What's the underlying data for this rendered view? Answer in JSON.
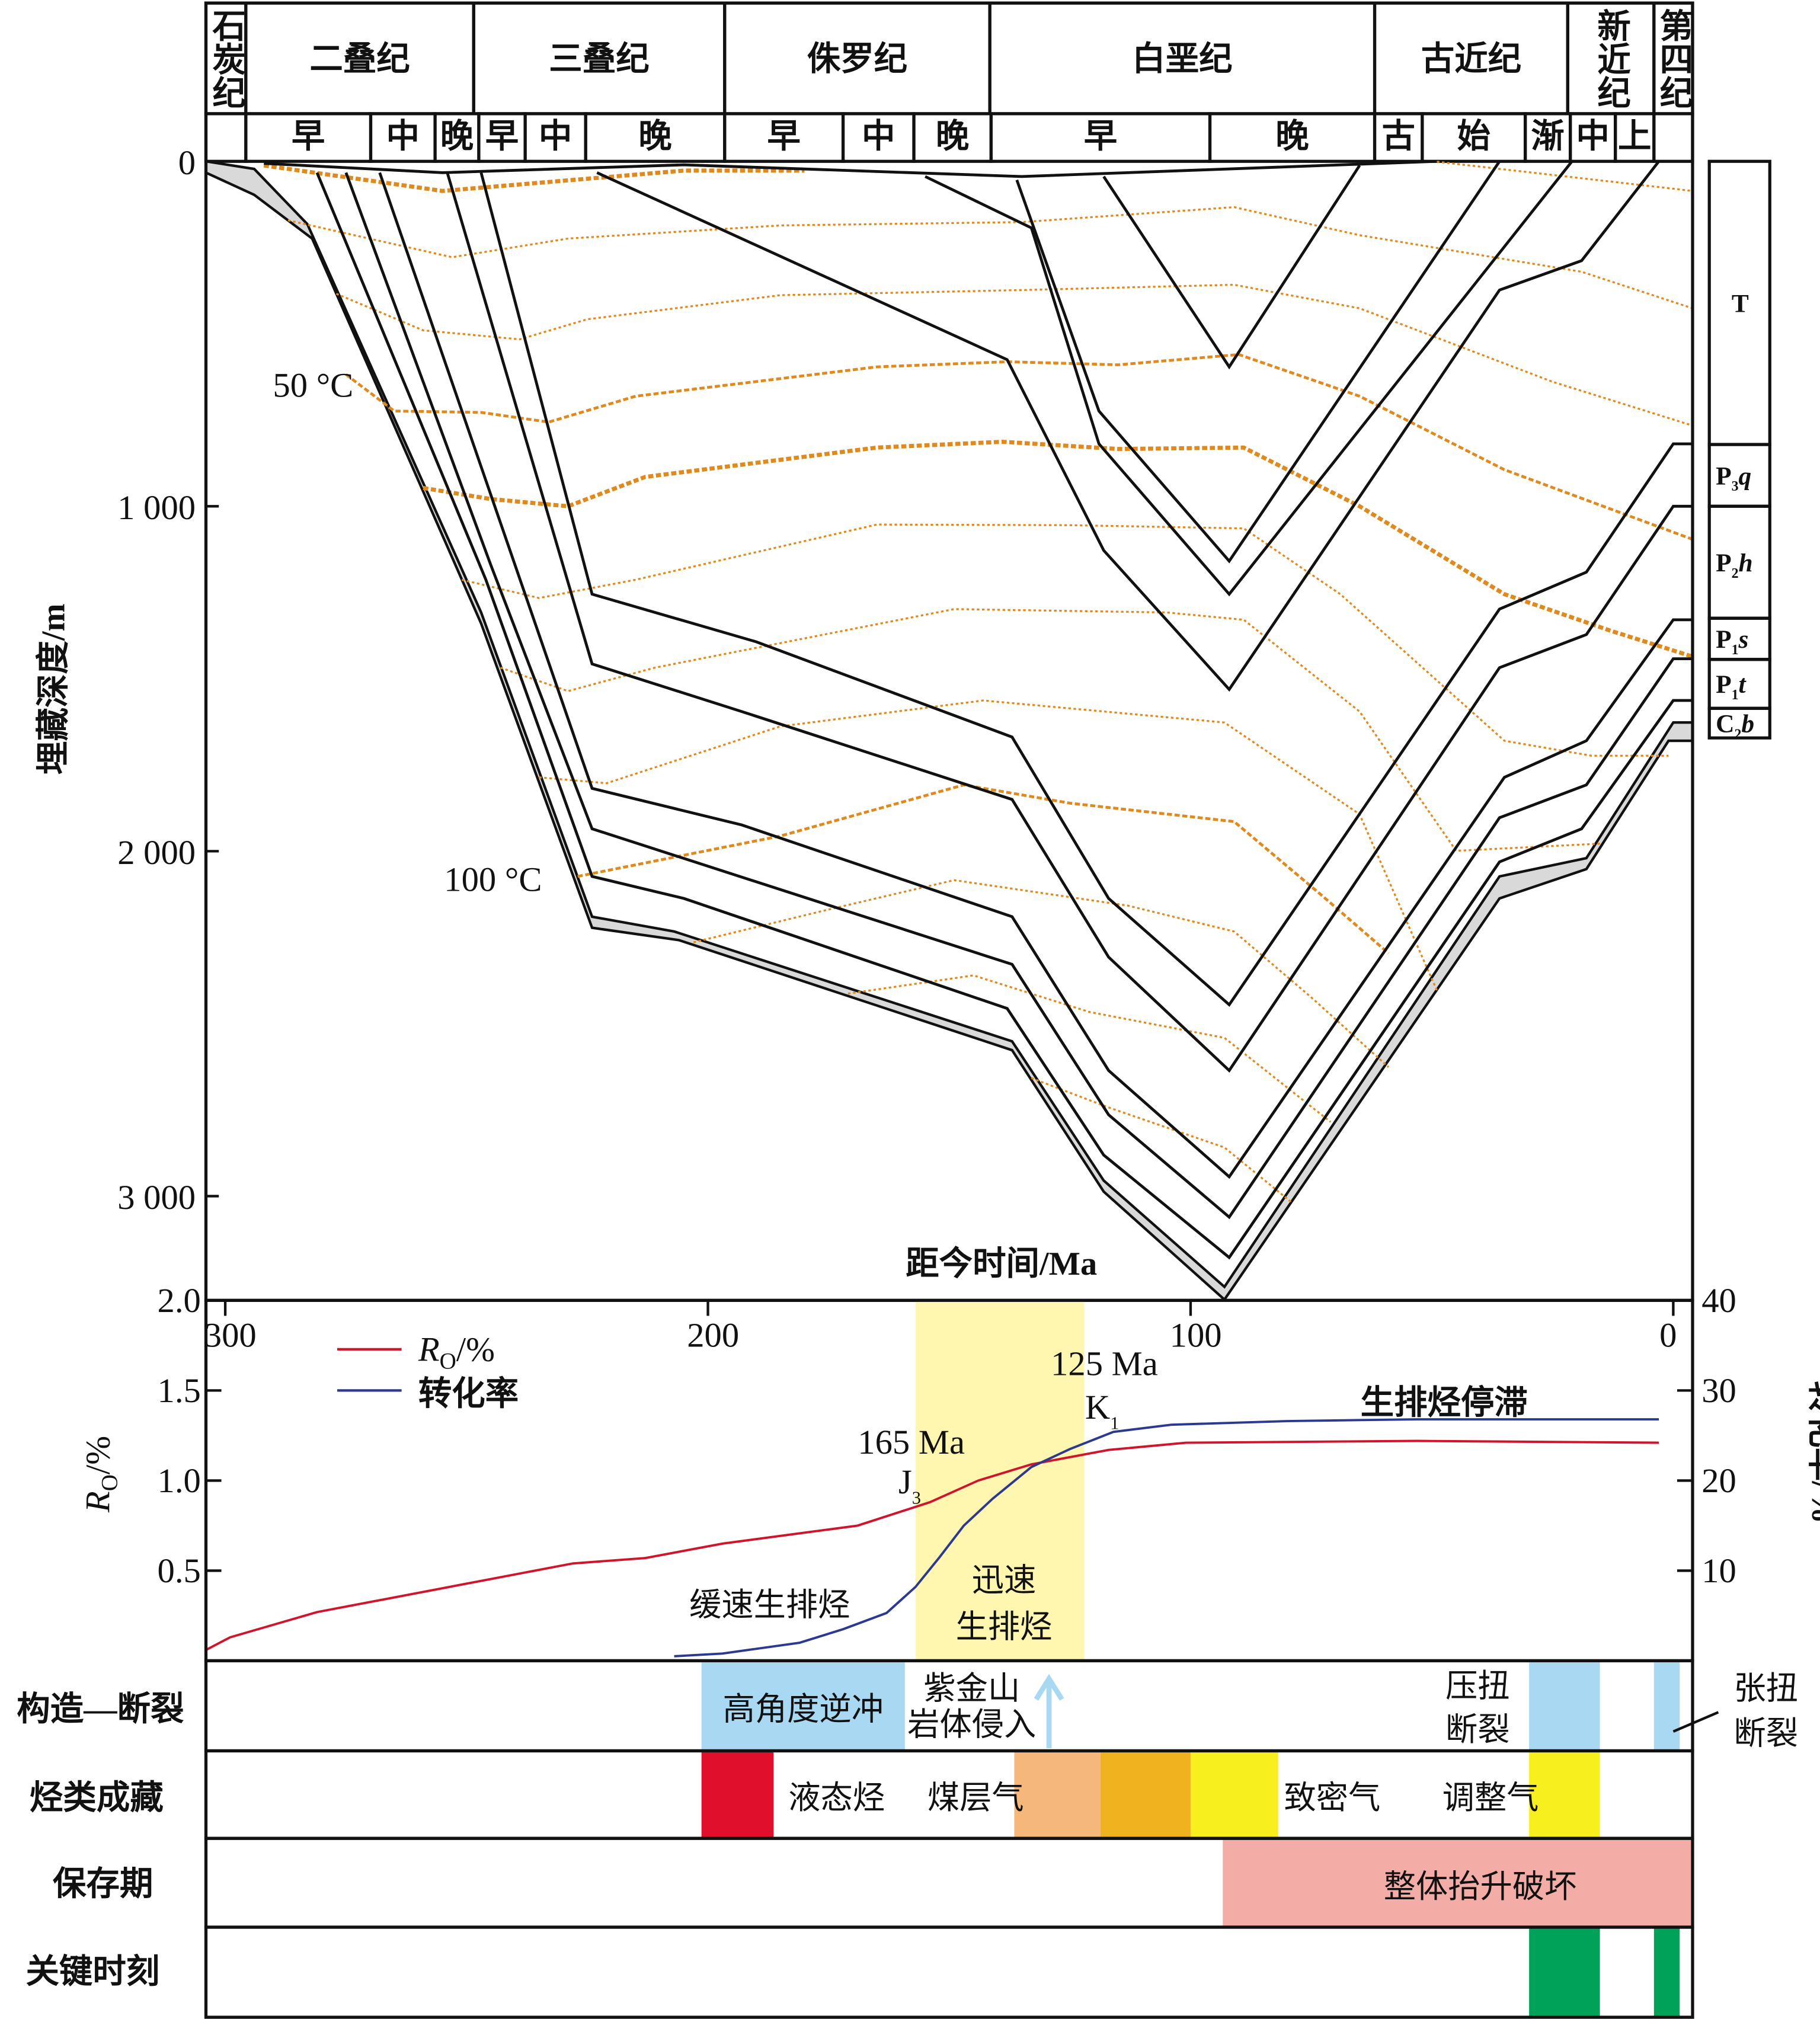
{
  "header": {
    "periods": [
      "石炭纪",
      "二叠纪",
      "三叠纪",
      "侏罗纪",
      "白垩纪",
      "古近纪",
      "新近纪",
      "第四纪"
    ],
    "epochs": [
      "早",
      "中",
      "晚",
      "早",
      "中",
      "晚",
      "早",
      "中",
      "晚",
      "早",
      "晚",
      "古",
      "始",
      "渐",
      "中",
      "上"
    ]
  },
  "burial": {
    "y_axis_title": "埋藏深度/m",
    "y_ticks": [
      {
        "value": 0,
        "label": "0"
      },
      {
        "value": 1000,
        "label": "1 000"
      },
      {
        "value": 2000,
        "label": "2 000"
      },
      {
        "value": 3000,
        "label": "3 000"
      }
    ],
    "x_axis_title": "距今时间/Ma",
    "x_range_ma": [
      304,
      -4
    ],
    "depth_range_m": [
      0,
      3300
    ],
    "isotherm_labels": [
      "50 °C",
      "100 °C"
    ],
    "surface_line": [
      [
        292,
        6
      ],
      [
        255,
        33
      ],
      [
        205,
        10
      ],
      [
        135,
        44
      ],
      [
        49,
        0
      ]
    ],
    "surfaces": [
      {
        "points": [
          [
            118,
            44
          ],
          [
            92,
            596
          ],
          [
            65,
            12
          ]
        ]
      },
      {
        "points": [
          [
            136,
            54
          ],
          [
            119,
            724
          ],
          [
            92,
            1159
          ],
          [
            36,
            0
          ]
        ]
      },
      {
        "points": [
          [
            155,
            44
          ],
          [
            133,
            193
          ],
          [
            119,
            819
          ],
          [
            92,
            1255
          ],
          [
            21,
            0
          ]
        ]
      },
      {
        "points": [
          [
            223,
            33
          ],
          [
            138,
            575
          ],
          [
            118,
            1128
          ],
          [
            92,
            1531
          ],
          [
            36,
            373
          ],
          [
            19,
            288
          ],
          [
            3,
            0
          ]
        ]
      },
      {
        "points": [
          [
            247,
            33
          ],
          [
            224,
            1255
          ],
          [
            190,
            1393
          ],
          [
            137,
            1669
          ],
          [
            117,
            2137
          ],
          [
            92,
            2445
          ],
          [
            36,
            1298
          ],
          [
            18,
            1191
          ],
          [
            0,
            819
          ],
          [
            -4,
            819
          ]
        ]
      },
      {
        "points": [
          [
            254,
            33
          ],
          [
            224,
            1457
          ],
          [
            193,
            1595
          ],
          [
            137,
            1850
          ],
          [
            117,
            2307
          ],
          [
            92,
            2636
          ],
          [
            36,
            1468
          ],
          [
            18,
            1372
          ],
          [
            0,
            1000
          ],
          [
            -4,
            1000
          ]
        ]
      },
      {
        "points": [
          [
            268,
            33
          ],
          [
            224,
            1818
          ],
          [
            193,
            1924
          ],
          [
            137,
            2190
          ],
          [
            117,
            2636
          ],
          [
            92,
            2944
          ],
          [
            35,
            1786
          ],
          [
            18,
            1680
          ],
          [
            0,
            1329
          ],
          [
            -4,
            1329
          ]
        ]
      },
      {
        "points": [
          [
            275,
            33
          ],
          [
            245,
            1170
          ],
          [
            224,
            1935
          ],
          [
            137,
            2328
          ],
          [
            117,
            2764
          ],
          [
            92,
            3061
          ],
          [
            36,
            1903
          ],
          [
            18,
            1808
          ],
          [
            0,
            1442
          ],
          [
            -4,
            1442
          ]
        ]
      },
      {
        "points": [
          [
            281,
            33
          ],
          [
            246,
            1213
          ],
          [
            224,
            2073
          ],
          [
            205,
            2137
          ],
          [
            138,
            2456
          ],
          [
            118,
            2881
          ],
          [
            92,
            3178
          ],
          [
            36,
            2031
          ],
          [
            19,
            1935
          ],
          [
            0,
            1563
          ],
          [
            -4,
            1563
          ]
        ]
      }
    ],
    "gray_band": {
      "top": [
        [
          304,
          0
        ],
        [
          294,
          22
        ],
        [
          283,
          182
        ],
        [
          247,
          1308
        ],
        [
          224,
          2190
        ],
        [
          207,
          2233
        ],
        [
          137,
          2551
        ],
        [
          118,
          2955
        ],
        [
          93,
          3263
        ],
        [
          36,
          2073
        ],
        [
          18,
          2020
        ],
        [
          0,
          1627
        ],
        [
          -4,
          1627
        ]
      ],
      "bottom": [
        [
          304,
          33
        ],
        [
          294,
          97
        ],
        [
          282,
          224
        ],
        [
          247,
          1340
        ],
        [
          224,
          2222
        ],
        [
          206,
          2258
        ],
        [
          137,
          2577
        ],
        [
          118,
          2987
        ],
        [
          93,
          3300
        ],
        [
          36,
          2137
        ],
        [
          18,
          2052
        ],
        [
          1,
          1680
        ],
        [
          -4,
          1680
        ]
      ],
      "color": "#d9d9d9"
    },
    "isotherm_color": "#e08a1e",
    "isotherms": [
      {
        "weight": "thick",
        "points": [
          [
            292,
            12
          ],
          [
            255,
            86
          ],
          [
            205,
            27
          ],
          [
            180,
            27
          ]
        ]
      },
      {
        "weight": "thin",
        "points": [
          [
            49,
            1
          ],
          [
            -4,
            86
          ]
        ]
      },
      {
        "weight": "thin",
        "points": [
          [
            287,
            171
          ],
          [
            253,
            278
          ],
          [
            229,
            224
          ],
          [
            185,
            186
          ],
          [
            135,
            176
          ],
          [
            91,
            133
          ],
          [
            65,
            214
          ],
          [
            19,
            320
          ],
          [
            -4,
            426
          ]
        ]
      },
      {
        "weight": "thin",
        "points": [
          [
            277,
            384
          ],
          [
            259,
            490
          ],
          [
            239,
            516
          ],
          [
            225,
            458
          ],
          [
            185,
            388
          ],
          [
            135,
            373
          ],
          [
            91,
            358
          ],
          [
            65,
            426
          ],
          [
            25,
            639
          ],
          [
            -4,
            766
          ]
        ]
      },
      {
        "weight": "mid",
        "points": [
          [
            275,
            618
          ],
          [
            265,
            724
          ],
          [
            247,
            728
          ],
          [
            233,
            756
          ],
          [
            215,
            681
          ],
          [
            165,
            596
          ],
          [
            138,
            581
          ],
          [
            115,
            590
          ],
          [
            90,
            560
          ],
          [
            65,
            681
          ],
          [
            35,
            894
          ],
          [
            -4,
            1096
          ]
        ]
      },
      {
        "weight": "thick",
        "points": [
          [
            259,
            947
          ],
          [
            245,
            979
          ],
          [
            229,
            1000
          ],
          [
            213,
            915
          ],
          [
            165,
            830
          ],
          [
            139,
            813
          ],
          [
            115,
            834
          ],
          [
            89,
            830
          ],
          [
            65,
            1000
          ],
          [
            35,
            1255
          ],
          [
            13,
            1361
          ],
          [
            -4,
            1436
          ]
        ]
      },
      {
        "weight": "thin",
        "points": [
          [
            251,
            1213
          ],
          [
            235,
            1266
          ],
          [
            215,
            1213
          ],
          [
            165,
            1053
          ],
          [
            125,
            1055
          ],
          [
            89,
            1064
          ],
          [
            69,
            1255
          ],
          [
            35,
            1680
          ],
          [
            17,
            1723
          ],
          [
            1,
            1723
          ]
        ]
      },
      {
        "weight": "thin",
        "points": [
          [
            243,
            1468
          ],
          [
            229,
            1536
          ],
          [
            211,
            1468
          ],
          [
            149,
            1298
          ],
          [
            105,
            1308
          ],
          [
            89,
            1329
          ],
          [
            65,
            1595
          ],
          [
            45,
            1999
          ],
          [
            15,
            1978
          ]
        ]
      },
      {
        "weight": "thin",
        "points": [
          [
            235,
            1786
          ],
          [
            221,
            1803
          ],
          [
            185,
            1638
          ],
          [
            143,
            1563
          ],
          [
            93,
            1627
          ],
          [
            65,
            1893
          ],
          [
            49,
            2403
          ]
        ]
      },
      {
        "weight": "mid",
        "points": [
          [
            227,
            2073
          ],
          [
            185,
            1956
          ],
          [
            147,
            1808
          ],
          [
            125,
            1861
          ],
          [
            91,
            1914
          ],
          [
            73,
            2126
          ],
          [
            59,
            2296
          ]
        ]
      },
      {
        "weight": "thin",
        "points": [
          [
            203,
            2264
          ],
          [
            175,
            2169
          ],
          [
            149,
            2084
          ],
          [
            113,
            2158
          ],
          [
            91,
            2233
          ],
          [
            75,
            2424
          ],
          [
            59,
            2626
          ]
        ]
      },
      {
        "weight": "thin",
        "points": [
          [
            171,
            2413
          ],
          [
            145,
            2360
          ],
          [
            121,
            2466
          ],
          [
            93,
            2541
          ],
          [
            71,
            2785
          ]
        ]
      },
      {
        "weight": "thin",
        "points": [
          [
            133,
            2658
          ],
          [
            117,
            2743
          ],
          [
            93,
            2859
          ],
          [
            79,
            3019
          ]
        ]
      }
    ]
  },
  "strata_column": [
    {
      "main": "T",
      "sub": "",
      "suffix": ""
    },
    {
      "main": "P",
      "sub": "3",
      "suffix": "q"
    },
    {
      "main": "P",
      "sub": "2",
      "suffix": "h"
    },
    {
      "main": "P",
      "sub": "1",
      "suffix": "s"
    },
    {
      "main": "P",
      "sub": "1",
      "suffix": "t"
    },
    {
      "main": "C",
      "sub": "2",
      "suffix": "b"
    }
  ],
  "chart_data": {
    "type": "line",
    "xlabel": "",
    "x_ticks": [
      "300",
      "200",
      "100",
      "0"
    ],
    "x_tick_values": [
      300,
      200,
      100,
      0
    ],
    "x_range": [
      304,
      -4
    ],
    "ylabel_left": {
      "main": "R",
      "sub": "O",
      "suffix": "/%"
    },
    "ylim_left": [
      0,
      2.0
    ],
    "y_ticks_left": [
      "0.5",
      "1.0",
      "1.5",
      "2.0"
    ],
    "ylabel_right": "转化率/%",
    "ylim_right": [
      0,
      40
    ],
    "y_ticks_right": [
      "10",
      "20",
      "30",
      "40"
    ],
    "legend_position": "top-left",
    "series": [
      {
        "name": "Ro/%",
        "legend": {
          "main": "R",
          "sub": "O",
          "suffix": "/%"
        },
        "axis": "left",
        "color": "#d0142c",
        "x": [
          304,
          299,
          281,
          228,
          213,
          197,
          169,
          154,
          144,
          133,
          117,
          101,
          53,
          3
        ],
        "y": [
          0.06,
          0.13,
          0.27,
          0.54,
          0.57,
          0.65,
          0.75,
          0.88,
          1.0,
          1.09,
          1.17,
          1.21,
          1.22,
          1.21
        ]
      },
      {
        "name": "转化率",
        "legend": {
          "main": "转化率",
          "sub": "",
          "suffix": ""
        },
        "axis": "right",
        "color": "#2b3a8f",
        "x": [
          207,
          197,
          181,
          172,
          163,
          157,
          152,
          147,
          141,
          133,
          125,
          116,
          104,
          80,
          53,
          3
        ],
        "y": [
          0.5,
          0.8,
          2,
          3.5,
          5.3,
          8.2,
          11.5,
          15,
          18,
          21.5,
          23.5,
          25.4,
          26.2,
          26.6,
          26.8,
          26.8
        ]
      }
    ],
    "highlight": {
      "from_ma": 157,
      "to_ma": 122,
      "color": "#fff6b0"
    },
    "annotations": {
      "a165": "165 Ma",
      "j3": {
        "main": "J",
        "sub": "3"
      },
      "a125": "125 Ma",
      "k1": {
        "main": "K",
        "sub": "1"
      },
      "stagnation": "生排烃停滞",
      "slow": "缓速生排烃",
      "rapid1": "迅速",
      "rapid2": "生排烃"
    }
  },
  "rows": {
    "labels": [
      "构造—断裂",
      "烃类成藏",
      "保存期",
      "关键时刻"
    ],
    "tectonic": {
      "thrust": "高角度逆冲",
      "intrusion1": "紫金山",
      "intrusion2": "岩体侵入",
      "transpress1": "压扭",
      "transpress2": "断裂",
      "transtens1": "张扭",
      "transtens2": "断裂",
      "color": "#a8d8f2",
      "arrow_color": "#a8d8f2"
    },
    "accumulation": {
      "liquid": "液态烃",
      "coalbed": "煤层气",
      "tight": "致密气",
      "adjusted": "调整气",
      "colors": {
        "liquid": "#e0102c",
        "coalbed": "#f5b87a",
        "orange": "#f0b21e",
        "tight": "#f7ef1e",
        "adjusted": "#f7ef1e"
      }
    },
    "preservation": {
      "label": "整体抬升破坏",
      "color": "#f3aca6"
    },
    "key_moments": {
      "color": "#00a25a"
    }
  }
}
